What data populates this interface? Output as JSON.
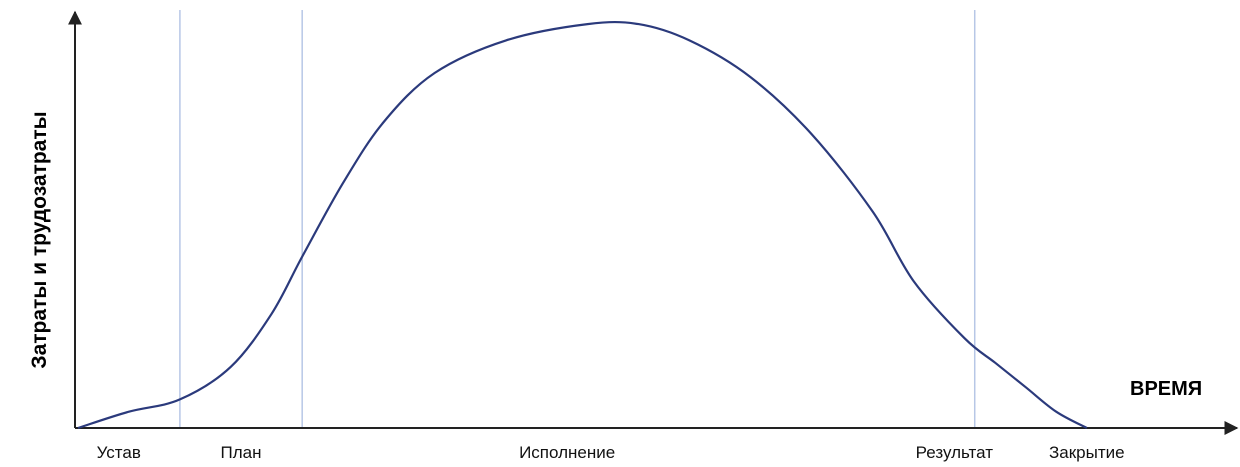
{
  "chart_data": {
    "type": "line",
    "title": "",
    "xlabel": "ВРЕМЯ",
    "ylabel": "Затраты и трудозатраты",
    "colors": {
      "curve": "#2b3a7c",
      "phase_lines": "#b7c7e6",
      "axes": "#222222"
    },
    "xlim": [
      0,
      100
    ],
    "ylim": [
      0,
      100
    ],
    "grid": false,
    "axis_ticks": [
      {
        "label": "Устав",
        "x": 4
      },
      {
        "label": "План",
        "x": 16
      },
      {
        "label": "Исполнение",
        "x": 48
      },
      {
        "label": "Результат",
        "x": 86
      },
      {
        "label": "Закрытие",
        "x": 99
      }
    ],
    "phase_boundaries": [
      10,
      22,
      88
    ],
    "series": [
      {
        "values": [
          {
            "x": 0,
            "y": 0
          },
          {
            "x": 5,
            "y": 4
          },
          {
            "x": 10,
            "y": 7
          },
          {
            "x": 15,
            "y": 15
          },
          {
            "x": 19,
            "y": 28
          },
          {
            "x": 22,
            "y": 42
          },
          {
            "x": 26,
            "y": 60
          },
          {
            "x": 30,
            "y": 75
          },
          {
            "x": 35,
            "y": 87
          },
          {
            "x": 42,
            "y": 95
          },
          {
            "x": 50,
            "y": 99
          },
          {
            "x": 55,
            "y": 99
          },
          {
            "x": 60,
            "y": 95
          },
          {
            "x": 66,
            "y": 86
          },
          {
            "x": 72,
            "y": 72
          },
          {
            "x": 78,
            "y": 53
          },
          {
            "x": 82,
            "y": 36
          },
          {
            "x": 87,
            "y": 22
          },
          {
            "x": 90,
            "y": 16
          },
          {
            "x": 93,
            "y": 10
          },
          {
            "x": 96,
            "y": 4
          },
          {
            "x": 99,
            "y": 0
          }
        ]
      }
    ]
  }
}
